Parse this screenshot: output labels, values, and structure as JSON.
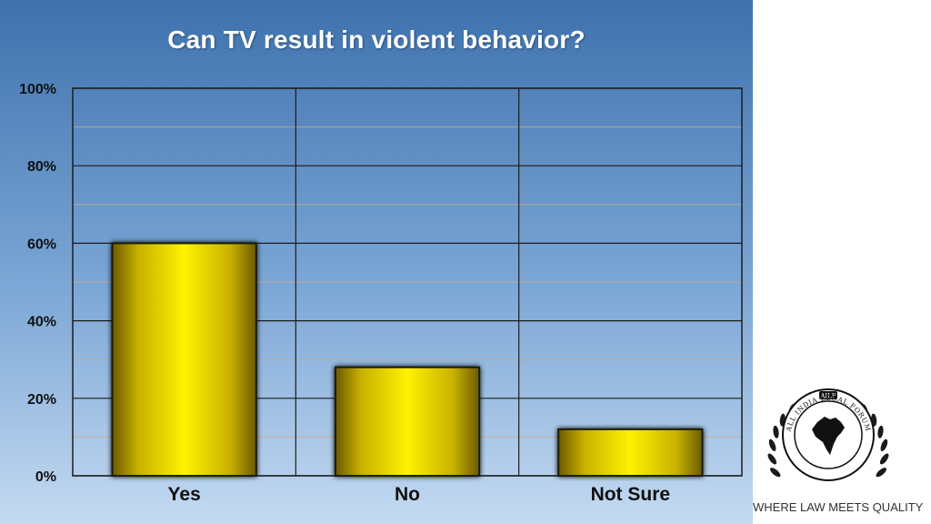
{
  "chart_data": {
    "type": "bar",
    "title": "Can TV result in violent behavior?",
    "categories": [
      "Yes",
      "No",
      "Not Sure"
    ],
    "values": [
      60,
      28,
      12
    ],
    "ylim": [
      0,
      100
    ],
    "yticks": [
      "0%",
      "20%",
      "40%",
      "60%",
      "80%",
      "100%"
    ],
    "ytick_values": [
      0,
      20,
      40,
      60,
      80,
      100
    ],
    "grid": true,
    "bar_color": "#e6d400",
    "background_color": "#5f8fc6"
  },
  "logo": {
    "name": "AILF",
    "text": "ALL INDIA LEGAL FORUM",
    "tagline": "WHERE LAW MEETS QUALITY"
  }
}
